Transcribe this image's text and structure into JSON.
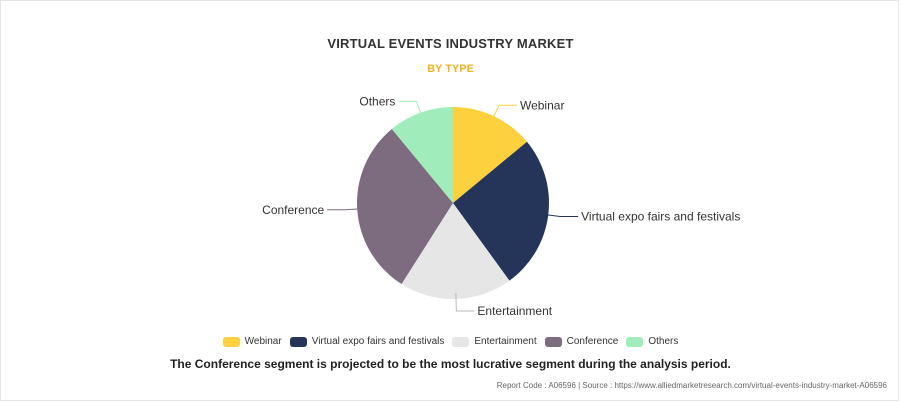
{
  "chart_data": {
    "type": "pie",
    "title": "VIRTUAL EVENTS INDUSTRY MARKET",
    "subtitle": "BY TYPE",
    "legend_position": "bottom",
    "slices": [
      {
        "label": "Webinar",
        "value": 14,
        "color": "#fdd13d"
      },
      {
        "label": "Virtual expo fairs and festivals",
        "value": 26,
        "color": "#243559"
      },
      {
        "label": "Entertainment",
        "value": 19,
        "color": "#e6e6e6"
      },
      {
        "label": "Conference",
        "value": 30,
        "color": "#7d6c80"
      },
      {
        "label": "Others",
        "value": 11,
        "color": "#a1ecbb"
      }
    ]
  },
  "caption": "The Conference segment is projected to be the most lucrative segment during the analysis period.",
  "source": "Report Code : A06596  |  Source : https://www.alliedmarketresearch.com/virtual-events-industry-market-A06596"
}
